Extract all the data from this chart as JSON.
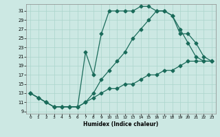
{
  "xlabel": "Humidex (Indice chaleur)",
  "bg_color": "#cce8e3",
  "line_color": "#1a6b5a",
  "grid_color": "#aad4cc",
  "xlim": [
    -0.5,
    23.5
  ],
  "ylim": [
    8.5,
    32.5
  ],
  "yticks": [
    9,
    11,
    13,
    15,
    17,
    19,
    21,
    23,
    25,
    27,
    29,
    31
  ],
  "xticks": [
    0,
    1,
    2,
    3,
    4,
    5,
    6,
    7,
    8,
    9,
    10,
    11,
    12,
    13,
    14,
    15,
    16,
    17,
    18,
    19,
    20,
    21,
    22,
    23
  ],
  "line1_x": [
    0,
    1,
    2,
    3,
    4,
    5,
    6,
    7,
    8,
    9,
    10,
    11,
    12,
    13,
    14,
    15,
    16,
    17,
    18,
    19,
    20,
    21,
    22,
    23
  ],
  "line1_y": [
    13,
    12,
    11,
    10,
    10,
    10,
    10,
    22,
    17,
    26,
    31,
    31,
    31,
    31,
    32,
    32,
    31,
    31,
    30,
    27,
    24,
    21,
    20,
    20
  ],
  "line2_x": [
    0,
    1,
    2,
    3,
    4,
    5,
    6,
    7,
    8,
    9,
    10,
    11,
    12,
    13,
    14,
    15,
    16,
    17,
    18,
    19,
    20,
    21,
    22,
    23
  ],
  "line2_y": [
    13,
    12,
    11,
    10,
    10,
    10,
    10,
    11,
    13,
    16,
    18,
    20,
    22,
    25,
    27,
    29,
    31,
    31,
    30,
    26,
    26,
    24,
    21,
    20
  ],
  "line3_x": [
    0,
    1,
    2,
    3,
    4,
    5,
    6,
    7,
    8,
    9,
    10,
    11,
    12,
    13,
    14,
    15,
    16,
    17,
    18,
    19,
    20,
    21,
    22,
    23
  ],
  "line3_y": [
    13,
    12,
    11,
    10,
    10,
    10,
    10,
    11,
    12,
    13,
    14,
    14,
    15,
    15,
    16,
    17,
    17,
    18,
    18,
    19,
    20,
    20,
    20,
    20
  ]
}
